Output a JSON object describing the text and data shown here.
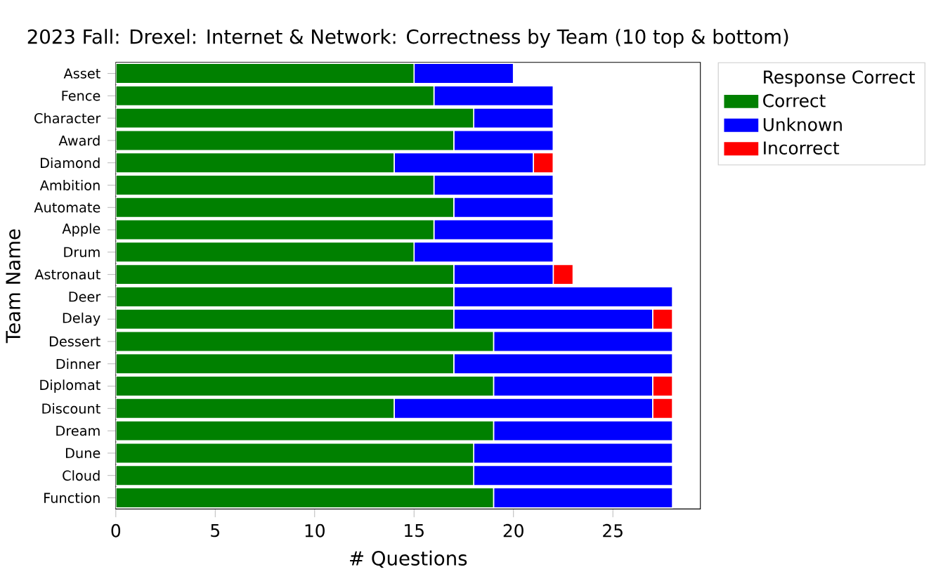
{
  "chart_data": {
    "type": "bar",
    "orientation": "horizontal",
    "stacked": true,
    "title": "2023 Fall: Drexel: Internet & Network: Correctness by Team (10 top & bottom)",
    "xlabel": "# Questions",
    "ylabel": "Team Name",
    "legend_title": "Response Correct",
    "legend": "right",
    "categories": [
      "Asset",
      "Fence",
      "Character",
      "Award",
      "Diamond",
      "Ambition",
      "Automate",
      "Apple",
      "Drum",
      "Astronaut",
      "Deer",
      "Delay",
      "Dessert",
      "Dinner",
      "Diplomat",
      "Discount",
      "Dream",
      "Dune",
      "Cloud",
      "Function"
    ],
    "series": [
      {
        "name": "Correct",
        "color": "#008000",
        "values": [
          15,
          16,
          18,
          17,
          14,
          16,
          17,
          16,
          15,
          17,
          17,
          17,
          19,
          17,
          19,
          14,
          19,
          18,
          18,
          19
        ]
      },
      {
        "name": "Unknown",
        "color": "#0000ff",
        "values": [
          5,
          6,
          4,
          5,
          7,
          6,
          5,
          6,
          7,
          5,
          11,
          10,
          9,
          11,
          8,
          13,
          9,
          10,
          10,
          9
        ]
      },
      {
        "name": "Incorrect",
        "color": "#ff0000",
        "values": [
          0,
          0,
          0,
          0,
          1,
          0,
          0,
          0,
          0,
          1,
          0,
          1,
          0,
          0,
          1,
          1,
          0,
          0,
          0,
          0
        ]
      }
    ],
    "xlim": [
      0,
      29.4
    ],
    "xticks": [
      0,
      5,
      10,
      15,
      20,
      25
    ]
  }
}
